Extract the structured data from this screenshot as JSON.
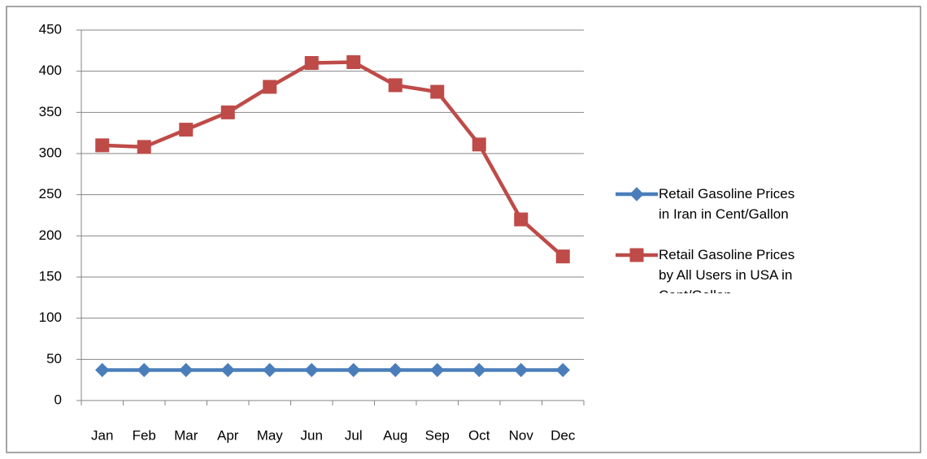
{
  "chart_data": {
    "type": "line",
    "categories": [
      "Jan",
      "Feb",
      "Mar",
      "Apr",
      "May",
      "Jun",
      "Jul",
      "Aug",
      "Sep",
      "Oct",
      "Nov",
      "Dec"
    ],
    "series": [
      {
        "name": "Retail Gasoline Prices in Iran in Cent/Gallon",
        "color": "#4a7ebb",
        "marker": "diamond",
        "values": [
          37,
          37,
          37,
          37,
          37,
          37,
          37,
          37,
          37,
          37,
          37,
          37
        ]
      },
      {
        "name": "Retail Gasoline Prices by All Users in USA in Cent/Gallon",
        "color": "#be4b48",
        "marker": "square",
        "values": [
          310,
          308,
          329,
          350,
          381,
          410,
          411,
          383,
          375,
          311,
          220,
          175
        ]
      }
    ],
    "ylim": [
      0,
      450
    ],
    "yticks": [
      0,
      50,
      100,
      150,
      200,
      250,
      300,
      350,
      400,
      450
    ],
    "grid": true,
    "legend": "right"
  }
}
